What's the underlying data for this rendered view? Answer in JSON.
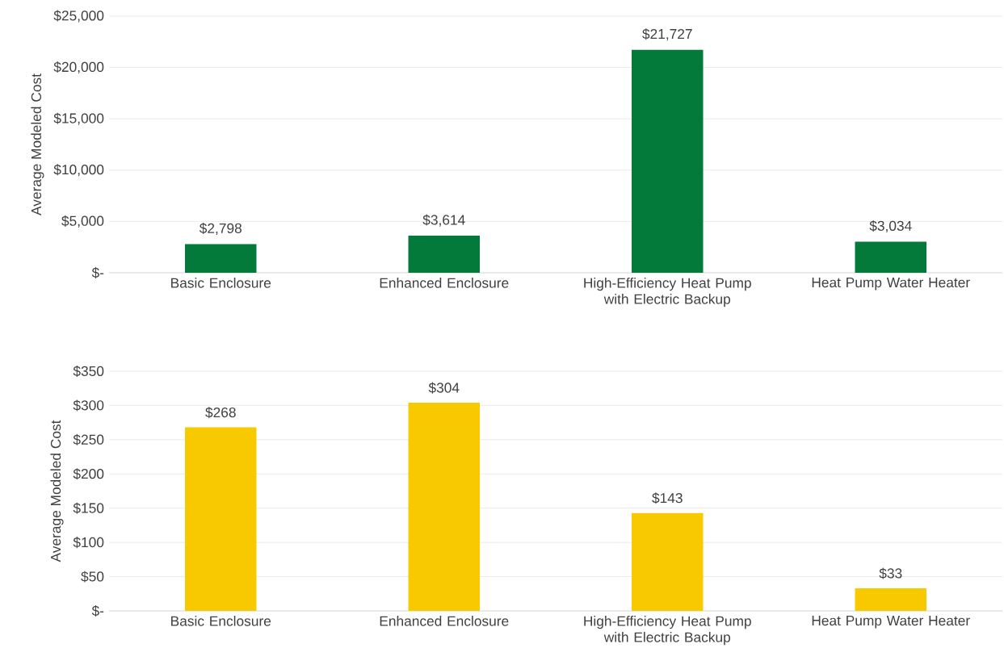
{
  "chart_data": [
    {
      "type": "bar",
      "ylabel": "Average Modeled Cost",
      "categories": [
        "Basic Enclosure",
        "Enhanced Enclosure",
        "High-Efficiency Heat Pump with Electric Backup",
        "Heat Pump Water Heater"
      ],
      "values": [
        2798,
        3614,
        21727,
        3034
      ],
      "value_labels": [
        "$2,798",
        "$3,614",
        "$21,727",
        "$3,034"
      ],
      "color": "#047a3a",
      "ylim": [
        0,
        25000
      ],
      "yticks": [
        {
          "value": 0,
          "label": "$-"
        },
        {
          "value": 5000,
          "label": "$5,000"
        },
        {
          "value": 10000,
          "label": "$10,000"
        },
        {
          "value": 15000,
          "label": "$15,000"
        },
        {
          "value": 20000,
          "label": "$20,000"
        },
        {
          "value": 25000,
          "label": "$25,000"
        }
      ],
      "grid": "y"
    },
    {
      "type": "bar",
      "ylabel": "Average Modeled Cost",
      "categories": [
        "Basic Enclosure",
        "Enhanced Enclosure",
        "High-Efficiency Heat Pump with Electric Backup",
        "Heat Pump Water Heater"
      ],
      "values": [
        268,
        304,
        143,
        33
      ],
      "value_labels": [
        "$268",
        "$304",
        "$143",
        "$33"
      ],
      "color": "#f9c900",
      "ylim": [
        0,
        350
      ],
      "yticks": [
        {
          "value": 0,
          "label": "$-"
        },
        {
          "value": 50,
          "label": "$50"
        },
        {
          "value": 100,
          "label": "$100"
        },
        {
          "value": 150,
          "label": "$150"
        },
        {
          "value": 200,
          "label": "$200"
        },
        {
          "value": 250,
          "label": "$250"
        },
        {
          "value": 300,
          "label": "$300"
        },
        {
          "value": 350,
          "label": "$350"
        }
      ],
      "grid": "y"
    }
  ]
}
